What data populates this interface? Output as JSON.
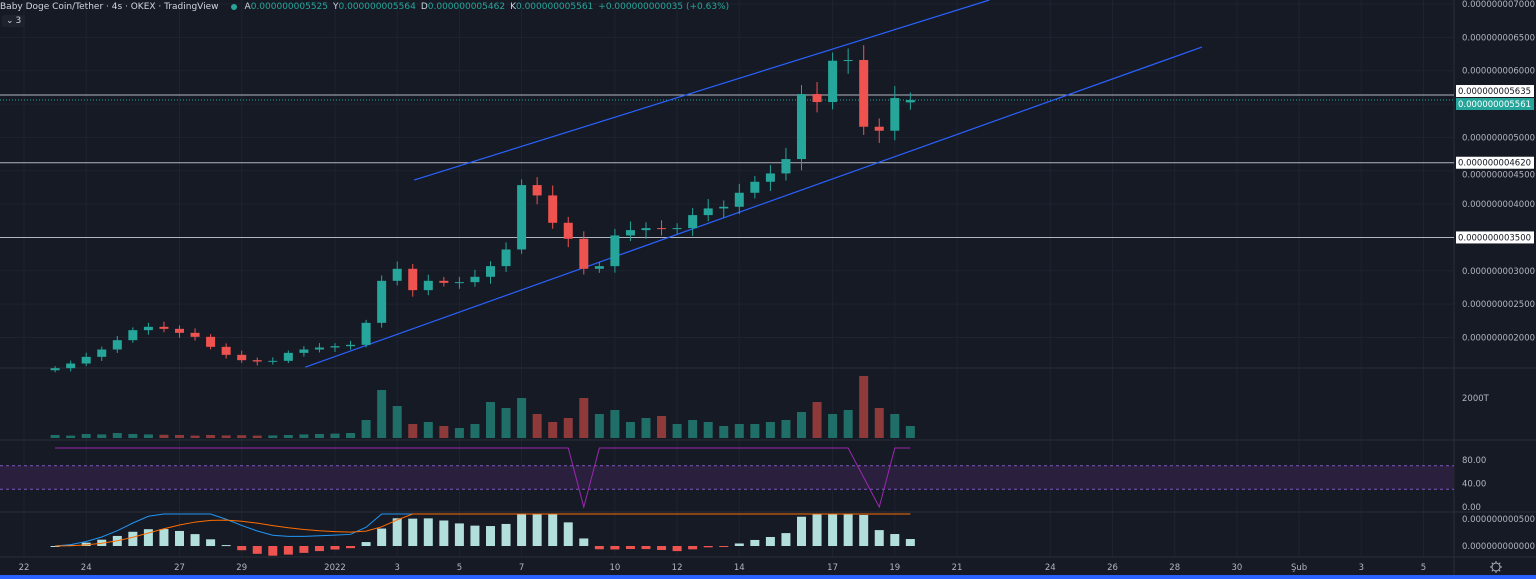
{
  "legend": {
    "symbol": "Baby Doge Coin/Tether · 4s · OKEX · TradingView",
    "status_color": "#26a69a",
    "open_key": "A",
    "open": "0.000000005525",
    "high_key": "Y",
    "high": "0.000000005564",
    "low_key": "D",
    "low": "0.000000005462",
    "close_key": "K",
    "close": "0.000000005561",
    "change": "+0.000000000035 (+0.63%)"
  },
  "indicators_toggle": {
    "icon": "chevron-down-icon",
    "count": "3"
  },
  "colors": {
    "up": "#26a69a",
    "down": "#ef5350",
    "trendline": "#2962ff",
    "rsi": "#9c27b0",
    "macd": "#2196f3",
    "signal": "#ff6d00",
    "hline": "#b2b5be",
    "background": "#161a25"
  },
  "chart_data": {
    "type": "candlestick",
    "start": "2021-12-23T00:00:00Z",
    "interval_hours": 12,
    "closes": [
      1.54e-09,
      1.61e-09,
      1.71e-09,
      1.82e-09,
      1.96e-09,
      2.11e-09,
      2.16e-09,
      2.13e-09,
      2.07e-09,
      2.01e-09,
      1.86e-09,
      1.74e-09,
      1.66e-09,
      1.64e-09,
      1.65e-09,
      1.77e-09,
      1.82e-09,
      1.85e-09,
      1.87e-09,
      1.89e-09,
      2.22e-09,
      2.85e-09,
      3.03e-09,
      2.71e-09,
      2.85e-09,
      2.82e-09,
      2.83e-09,
      2.91e-09,
      3.07e-09,
      3.32e-09,
      4.285e-09,
      4.13e-09,
      3.72e-09,
      3.48e-09,
      3.03e-09,
      3.07e-09,
      3.53e-09,
      3.61e-09,
      3.64e-09,
      3.63e-09,
      3.64e-09,
      3.835e-09,
      3.935e-09,
      3.96e-09,
      4.17e-09,
      4.335e-09,
      4.46e-09,
      4.675e-09,
      5.65e-09,
      5.53e-09,
      6.15e-09,
      6.16e-09,
      5.16e-09,
      5.1e-09,
      5.59e-09,
      5.561e-09
    ],
    "volume_T": [
      150,
      120,
      200,
      180,
      250,
      200,
      180,
      160,
      150,
      120,
      150,
      130,
      140,
      120,
      130,
      150,
      180,
      200,
      220,
      250,
      900,
      2400,
      1600,
      700,
      800,
      600,
      500,
      700,
      1800,
      1500,
      2000,
      1200,
      800,
      1000,
      2000,
      1200,
      1400,
      800,
      1000,
      1100,
      700,
      900,
      800,
      600,
      700,
      700,
      800,
      900,
      1300,
      1800,
      1200,
      1400,
      3100,
      1500,
      1200,
      600
    ],
    "rsi": [
      100,
      100,
      100,
      100,
      100,
      100,
      100,
      100,
      100,
      100,
      100,
      100,
      100,
      100,
      100,
      100,
      100,
      100,
      100,
      100,
      100,
      100,
      100,
      100,
      100,
      100,
      100,
      100,
      100,
      100,
      100,
      100,
      100,
      100,
      0,
      100,
      100,
      100,
      100,
      100,
      100,
      100,
      100,
      100,
      100,
      100,
      100,
      100,
      100,
      100,
      100,
      100,
      50,
      0,
      100,
      100
    ],
    "price_axis": {
      "ticks": [
        "0.000000007000",
        "0.000000006500",
        "0.000000006000",
        "0.000000005000",
        "0.000000004500",
        "0.000000004000",
        "0.000000003000",
        "0.000000002500",
        "0.000000002000"
      ],
      "range": [
        1.5e-09,
        7.05e-09
      ]
    },
    "volume_axis": {
      "ticks": [
        "2000T"
      ]
    },
    "rsi_axis": {
      "ticks": [
        "80.00",
        "40.00",
        "0.00"
      ],
      "band": [
        30,
        70
      ]
    },
    "macd_axis": {
      "ticks": [
        "0.000000000500",
        "0.000000000000"
      ]
    },
    "horizontal_lines": [
      {
        "price": 5.635e-09,
        "label": "0.000000005635"
      },
      {
        "price": 4.62e-09,
        "label": "0.000000004620"
      },
      {
        "price": 3.5e-09,
        "label": "0.000000003500"
      }
    ],
    "last_price": {
      "price": 5.561e-09,
      "label": "0.000000005561"
    },
    "trendlines": [
      {
        "from": {
          "t": "2022-01-03T13:00:00Z",
          "price": 4.36e-09
        },
        "to": {
          "t": "2022-01-22T01:00:00Z",
          "price": 7.06e-09
        }
      },
      {
        "from": {
          "t": "2021-12-31T01:00:00Z",
          "price": 1.555e-09
        },
        "to": {
          "t": "2022-01-28T21:00:00Z",
          "price": 6.355e-09
        }
      }
    ],
    "time_axis": [
      {
        "t": "2021-12-22",
        "label": "22"
      },
      {
        "t": "2021-12-24",
        "label": "24"
      },
      {
        "t": "2021-12-27",
        "label": "27"
      },
      {
        "t": "2021-12-29",
        "label": "29"
      },
      {
        "t": "2022-01-01",
        "label": "2022"
      },
      {
        "t": "2022-01-03",
        "label": "3"
      },
      {
        "t": "2022-01-05",
        "label": "5"
      },
      {
        "t": "2022-01-07",
        "label": "7"
      },
      {
        "t": "2022-01-10",
        "label": "10"
      },
      {
        "t": "2022-01-12",
        "label": "12"
      },
      {
        "t": "2022-01-14",
        "label": "14"
      },
      {
        "t": "2022-01-17",
        "label": "17"
      },
      {
        "t": "2022-01-19",
        "label": "19"
      },
      {
        "t": "2022-01-21",
        "label": "21"
      },
      {
        "t": "2022-01-24",
        "label": "24"
      },
      {
        "t": "2022-01-26",
        "label": "26"
      },
      {
        "t": "2022-01-28",
        "label": "28"
      },
      {
        "t": "2022-01-30",
        "label": "30"
      },
      {
        "t": "2022-02-01",
        "label": "Şub"
      },
      {
        "t": "2022-02-03",
        "label": "3"
      },
      {
        "t": "2022-02-05",
        "label": "5"
      }
    ],
    "grid": true
  },
  "settings_icon": "gear-icon"
}
